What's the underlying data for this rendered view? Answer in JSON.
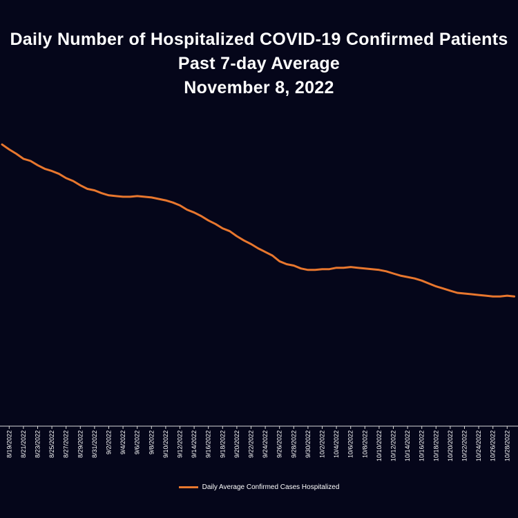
{
  "chart_data": {
    "type": "line",
    "title": [
      "Daily Number of Hospitalized COVID-19 Confirmed Patients",
      "Past 7-day Average",
      "November 8, 2022"
    ],
    "xlabel": "",
    "ylabel": "",
    "grid": false,
    "legend_position": "bottom",
    "line_color": "#e8772e",
    "x_ticks": [
      "8/19/2022",
      "8/21/2022",
      "8/23/2022",
      "8/25/2022",
      "8/27/2022",
      "8/29/2022",
      "8/31/2022",
      "9/2/2022",
      "9/4/2022",
      "9/6/2022",
      "9/8/2022",
      "9/10/2022",
      "9/12/2022",
      "9/14/2022",
      "9/16/2022",
      "9/18/2022",
      "9/20/2022",
      "9/22/2022",
      "9/24/2022",
      "9/26/2022",
      "9/28/2022",
      "9/30/2022",
      "10/2/2022",
      "10/4/2022",
      "10/6/2022",
      "10/8/2022",
      "10/10/2022",
      "10/12/2022",
      "10/14/2022",
      "10/16/2022",
      "10/18/2022",
      "10/20/2022",
      "10/22/2022",
      "10/24/2022",
      "10/26/2022",
      "10/28/2022"
    ],
    "series": [
      {
        "name": "Daily Average Confirmed Cases Hospitalized",
        "x": [
          "8/18/2022",
          "8/19/2022",
          "8/20/2022",
          "8/21/2022",
          "8/22/2022",
          "8/23/2022",
          "8/24/2022",
          "8/25/2022",
          "8/26/2022",
          "8/27/2022",
          "8/28/2022",
          "8/29/2022",
          "8/30/2022",
          "8/31/2022",
          "9/1/2022",
          "9/2/2022",
          "9/3/2022",
          "9/4/2022",
          "9/5/2022",
          "9/6/2022",
          "9/7/2022",
          "9/8/2022",
          "9/9/2022",
          "9/10/2022",
          "9/11/2022",
          "9/12/2022",
          "9/13/2022",
          "9/14/2022",
          "9/15/2022",
          "9/16/2022",
          "9/17/2022",
          "9/18/2022",
          "9/19/2022",
          "9/20/2022",
          "9/21/2022",
          "9/22/2022",
          "9/23/2022",
          "9/24/2022",
          "9/25/2022",
          "9/26/2022",
          "9/27/2022",
          "9/28/2022",
          "9/29/2022",
          "9/30/2022",
          "10/1/2022",
          "10/2/2022",
          "10/3/2022",
          "10/4/2022",
          "10/5/2022",
          "10/6/2022",
          "10/7/2022",
          "10/8/2022",
          "10/9/2022",
          "10/10/2022",
          "10/11/2022",
          "10/12/2022",
          "10/13/2022",
          "10/14/2022",
          "10/15/2022",
          "10/16/2022",
          "10/17/2022",
          "10/18/2022",
          "10/19/2022",
          "10/20/2022",
          "10/21/2022",
          "10/22/2022",
          "10/23/2022",
          "10/24/2022",
          "10/25/2022",
          "10/26/2022",
          "10/27/2022",
          "10/28/2022",
          "10/29/2022"
        ],
        "values": [
          3.93,
          3.86,
          3.8,
          3.73,
          3.7,
          3.64,
          3.59,
          3.56,
          3.52,
          3.46,
          3.42,
          3.36,
          3.31,
          3.29,
          3.25,
          3.22,
          3.21,
          3.2,
          3.2,
          3.21,
          3.2,
          3.19,
          3.17,
          3.15,
          3.12,
          3.08,
          3.02,
          2.98,
          2.93,
          2.87,
          2.82,
          2.76,
          2.72,
          2.65,
          2.59,
          2.54,
          2.48,
          2.43,
          2.38,
          2.3,
          2.26,
          2.24,
          2.2,
          2.18,
          2.18,
          2.19,
          2.19,
          2.21,
          2.21,
          2.22,
          2.21,
          2.2,
          2.19,
          2.18,
          2.16,
          2.13,
          2.1,
          2.08,
          2.06,
          2.03,
          1.99,
          1.95,
          1.92,
          1.89,
          1.86,
          1.85,
          1.84,
          1.83,
          1.82,
          1.81,
          1.81,
          1.82,
          1.81
        ]
      }
    ]
  }
}
